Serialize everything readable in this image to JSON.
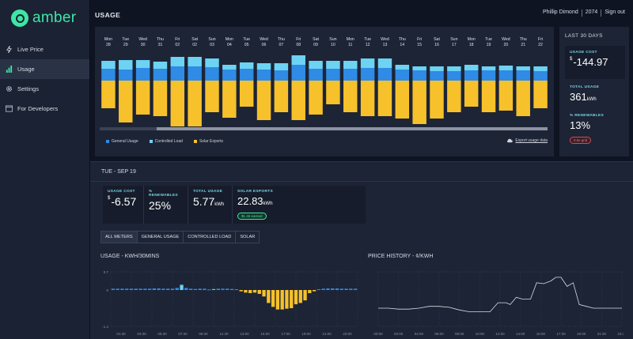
{
  "app": {
    "logo_text": "amber"
  },
  "sidebar": {
    "items": [
      {
        "label": "Live Price",
        "icon": "bolt-icon"
      },
      {
        "label": "Usage",
        "icon": "bar-chart-icon",
        "active": true
      },
      {
        "label": "Settings",
        "icon": "gear-icon"
      },
      {
        "label": "For Developers",
        "icon": "code-icon"
      }
    ]
  },
  "header": {
    "title": "USAGE",
    "user_name": "Phillip Dimond",
    "postcode": "2074",
    "sign_out": "Sign out"
  },
  "usage_chart": {
    "days": [
      {
        "d": "Mon",
        "n": "28"
      },
      {
        "d": "Tue",
        "n": "29"
      },
      {
        "d": "Wed",
        "n": "30"
      },
      {
        "d": "Thu",
        "n": "31"
      },
      {
        "d": "Fri",
        "n": "02"
      },
      {
        "d": "Sat",
        "n": "02"
      },
      {
        "d": "Sun",
        "n": "03"
      },
      {
        "d": "Mon",
        "n": "04"
      },
      {
        "d": "Tue",
        "n": "05"
      },
      {
        "d": "Wed",
        "n": "06"
      },
      {
        "d": "Thu",
        "n": "07"
      },
      {
        "d": "Fri",
        "n": "08"
      },
      {
        "d": "Sat",
        "n": "09"
      },
      {
        "d": "Sun",
        "n": "10"
      },
      {
        "d": "Mon",
        "n": "11"
      },
      {
        "d": "Tue",
        "n": "12"
      },
      {
        "d": "Wed",
        "n": "13"
      },
      {
        "d": "Thu",
        "n": "14"
      },
      {
        "d": "Fri",
        "n": "15"
      },
      {
        "d": "Sat",
        "n": "16"
      },
      {
        "d": "Sun",
        "n": "17"
      },
      {
        "d": "Mon",
        "n": "18"
      },
      {
        "d": "Tue",
        "n": "19"
      },
      {
        "d": "Wed",
        "n": "20"
      },
      {
        "d": "Thu",
        "n": "21"
      },
      {
        "d": "Fri",
        "n": "22"
      }
    ],
    "general": [
      15,
      14,
      16,
      15,
      18,
      18,
      17,
      14,
      15,
      14,
      13,
      20,
      15,
      15,
      15,
      16,
      16,
      14,
      13,
      12,
      12,
      13,
      13,
      13,
      13,
      12
    ],
    "controlled": [
      10,
      12,
      10,
      9,
      12,
      12,
      11,
      6,
      8,
      8,
      9,
      12,
      10,
      10,
      10,
      12,
      12,
      6,
      5,
      6,
      6,
      7,
      5,
      6,
      5,
      6
    ],
    "solar": [
      35,
      53,
      43,
      45,
      58,
      58,
      40,
      47,
      33,
      50,
      40,
      50,
      43,
      30,
      40,
      45,
      45,
      48,
      55,
      48,
      40,
      33,
      40,
      38,
      45,
      35
    ],
    "legend": [
      {
        "label": "General Usage",
        "color": "#2f8be6"
      },
      {
        "label": "Controlled Load",
        "color": "#6dd3f2"
      },
      {
        "label": "Solar Exports",
        "color": "#f6c12a"
      }
    ],
    "export_label": "Export usage data"
  },
  "summary_30": {
    "title": "LAST 30 DAYS",
    "usage_cost_label": "USAGE COST",
    "usage_cost_currency": "$",
    "usage_cost_value": "-144.97",
    "total_usage_label": "TOTAL USAGE",
    "total_usage_value": "361",
    "total_usage_unit": "kWh",
    "renewables_label": "% RENEWABLES",
    "renewables_value": "13%",
    "renewables_badge": "0.6x grid"
  },
  "day": {
    "title": "TUE - SEP 19",
    "usage_cost_label": "USAGE COST",
    "usage_cost_currency": "$",
    "usage_cost_value": "-6.57",
    "renewables_label": "% RENEWABLES",
    "renewables_value": "25%",
    "total_usage_label": "TOTAL USAGE",
    "total_usage_value": "5.77",
    "total_usage_unit": "kWh",
    "solar_label": "SOLAR EXPORTS",
    "solar_value": "22.83",
    "solar_unit": "kWh",
    "solar_badge": "$1.46 earned",
    "tabs": [
      "ALL METERS",
      "GENERAL USAGE",
      "CONTROLLED LOAD",
      "SOLAR"
    ]
  },
  "usage_30min": {
    "title": "USAGE - KWH/30MINS",
    "yticks": [
      "0.7",
      "0",
      "-1.4"
    ],
    "xticks": [
      "01:30",
      "03:30",
      "05:30",
      "07:30",
      "09:30",
      "11:30",
      "13:00",
      "15:00",
      "17:00",
      "19:00",
      "21:00",
      "23:00"
    ],
    "values": [
      0.05,
      0.05,
      0.05,
      0.05,
      0.05,
      0.05,
      0.05,
      0.05,
      0.05,
      0.06,
      0.06,
      0.05,
      0.05,
      0.05,
      0.08,
      0.2,
      0.08,
      0.05,
      0.04,
      0.05,
      0.05,
      0.02,
      0,
      0.05,
      0.05,
      0.05,
      0.04,
      0.03,
      -0.05,
      -0.1,
      -0.12,
      -0.1,
      -0.15,
      -0.25,
      -0.5,
      -0.65,
      -0.75,
      -0.75,
      -0.72,
      -0.7,
      -0.55,
      -0.5,
      -0.4,
      -0.12,
      -0.05,
      0.03,
      0.05,
      0.06,
      0.06,
      0.06,
      0.05,
      0.05,
      0.05,
      0.05
    ]
  },
  "price_history": {
    "title": "PRICE HISTORY - ¢/KWH",
    "xticks": [
      "00:00",
      "02:00",
      "04:00",
      "06:00",
      "08:00",
      "10:00",
      "12:00",
      "14:00",
      "16:00",
      "17:30",
      "19:30",
      "21:30",
      "23:30"
    ],
    "series": [
      [
        0,
        10
      ],
      [
        1,
        10
      ],
      [
        2,
        9.5
      ],
      [
        3,
        9.5
      ],
      [
        4,
        10
      ],
      [
        5,
        11
      ],
      [
        6,
        11
      ],
      [
        7,
        10.5
      ],
      [
        8,
        9
      ],
      [
        9,
        8
      ],
      [
        10,
        8
      ],
      [
        11,
        8
      ],
      [
        11.8,
        13
      ],
      [
        12.6,
        13
      ],
      [
        13,
        12
      ],
      [
        13.6,
        16
      ],
      [
        14.2,
        15
      ],
      [
        15,
        15
      ],
      [
        15.6,
        24
      ],
      [
        16.3,
        23.5
      ],
      [
        17,
        25
      ],
      [
        17.5,
        27
      ],
      [
        18,
        27
      ],
      [
        18.6,
        22
      ],
      [
        19.2,
        24
      ],
      [
        19.8,
        12
      ],
      [
        20.5,
        11
      ],
      [
        21.2,
        10
      ],
      [
        22,
        10
      ],
      [
        23,
        10
      ],
      [
        24,
        10
      ]
    ]
  }
}
